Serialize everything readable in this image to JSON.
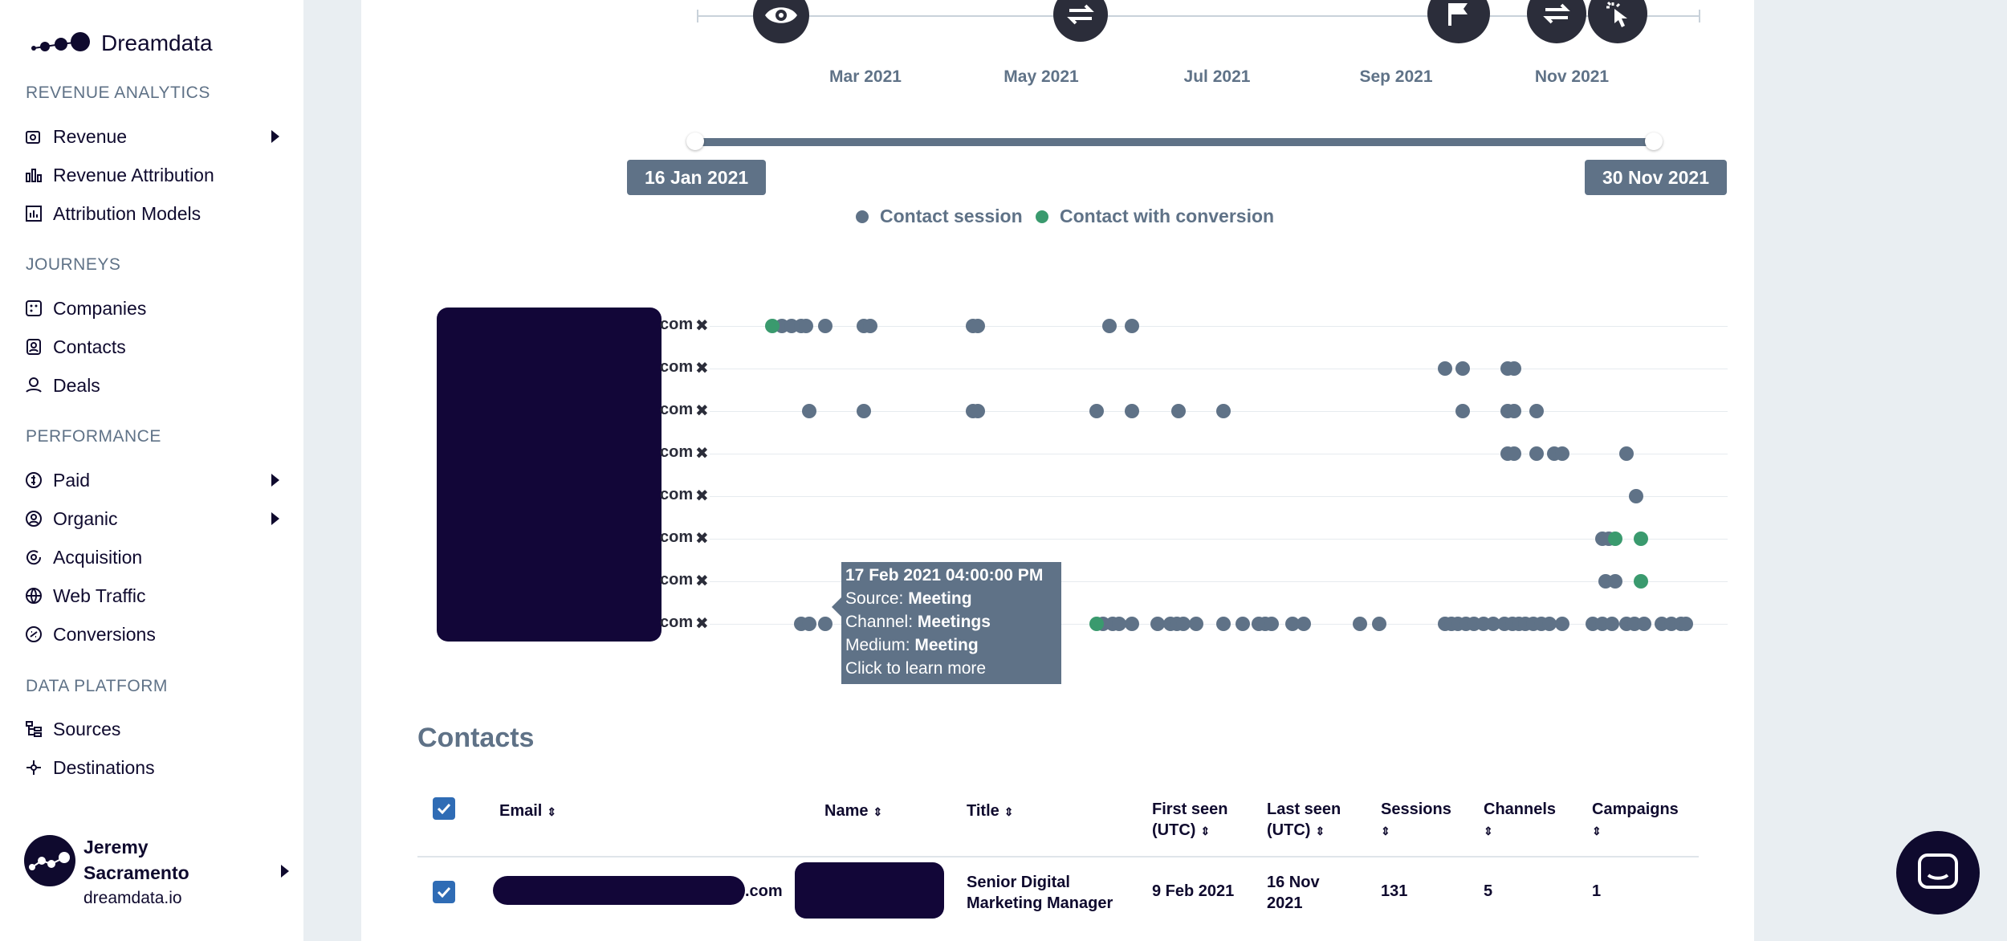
{
  "app": {
    "brand": "Dreamdata"
  },
  "sidebar": {
    "sections": [
      {
        "title": "REVENUE ANALYTICS",
        "items": [
          {
            "label": "Revenue",
            "icon": "revenue-icon",
            "expandable": true
          },
          {
            "label": "Revenue Attribution",
            "icon": "attribution-icon",
            "expandable": false
          },
          {
            "label": "Attribution Models",
            "icon": "models-icon",
            "expandable": false
          }
        ]
      },
      {
        "title": "JOURNEYS",
        "items": [
          {
            "label": "Companies",
            "icon": "companies-icon",
            "expandable": false
          },
          {
            "label": "Contacts",
            "icon": "contacts-icon",
            "expandable": false
          },
          {
            "label": "Deals",
            "icon": "deals-icon",
            "expandable": false
          }
        ]
      },
      {
        "title": "PERFORMANCE",
        "items": [
          {
            "label": "Paid",
            "icon": "paid-icon",
            "expandable": true
          },
          {
            "label": "Organic",
            "icon": "organic-icon",
            "expandable": true
          },
          {
            "label": "Acquisition",
            "icon": "acquisition-icon",
            "expandable": false
          },
          {
            "label": "Web Traffic",
            "icon": "web-traffic-icon",
            "expandable": false
          },
          {
            "label": "Conversions",
            "icon": "conversions-icon",
            "expandable": false
          }
        ]
      },
      {
        "title": "DATA PLATFORM",
        "items": [
          {
            "label": "Sources",
            "icon": "sources-icon",
            "expandable": false
          },
          {
            "label": "Destinations",
            "icon": "destinations-icon",
            "expandable": false
          }
        ]
      }
    ],
    "user": {
      "name": "Jeremy Sacramento",
      "domain": "dreamdata.io"
    }
  },
  "timeline": {
    "months": [
      "Mar 2021",
      "May 2021",
      "Jul 2021",
      "Sep 2021",
      "Nov 2021"
    ],
    "range_start": "16 Jan 2021",
    "range_end": "30 Nov 2021",
    "event_icons": [
      "eye-icon",
      "exchange-icon",
      "flag-icon",
      "exchange-icon",
      "click-icon"
    ]
  },
  "legend": {
    "session": "Contact session",
    "conversion": "Contact with conversion",
    "session_color": "#5f7287",
    "conversion_color": "#3a9a6e"
  },
  "journey_rows": [
    {
      "suffix": "com",
      "remove": "✖"
    },
    {
      "suffix": "com",
      "remove": "✖"
    },
    {
      "suffix": "com",
      "remove": "✖"
    },
    {
      "suffix": "com",
      "remove": "✖"
    },
    {
      "suffix": "com",
      "remove": "✖"
    },
    {
      "suffix": "com",
      "remove": "✖"
    },
    {
      "suffix": "com",
      "remove": "✖"
    },
    {
      "suffix": "com",
      "remove": "✖"
    }
  ],
  "tooltip": {
    "datetime": "17 Feb 2021 04:00:00 PM",
    "source_label": "Source:",
    "source": "Meeting",
    "channel_label": "Channel:",
    "channel": "Meetings",
    "medium_label": "Medium:",
    "medium": "Meeting",
    "cta": "Click to learn more"
  },
  "contacts": {
    "title": "Contacts",
    "columns": {
      "email": "Email",
      "name": "Name",
      "title": "Title",
      "first_seen": "First seen",
      "first_seen_unit": "(UTC)",
      "last_seen": "Last seen",
      "last_seen_unit": "(UTC)",
      "sessions": "Sessions",
      "channels": "Channels",
      "campaigns": "Campaigns"
    },
    "rows": [
      {
        "email_suffix": ".com",
        "title_line1": "Senior Digital",
        "title_line2": "Marketing Manager",
        "first_seen": "9 Feb 2021",
        "last_seen_line1": "16 Nov",
        "last_seen_line2": "2021",
        "sessions": "131",
        "channels": "5",
        "campaigns": "1"
      }
    ]
  }
}
